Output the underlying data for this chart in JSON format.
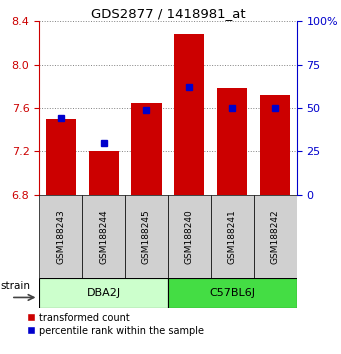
{
  "title": "GDS2877 / 1418981_at",
  "samples": [
    "GSM188243",
    "GSM188244",
    "GSM188245",
    "GSM188240",
    "GSM188241",
    "GSM188242"
  ],
  "bar_values": [
    7.5,
    7.2,
    7.65,
    8.28,
    7.78,
    7.72
  ],
  "bar_bottom": 6.8,
  "percentile_values": [
    44,
    30,
    49,
    62,
    50,
    50
  ],
  "ylim_left": [
    6.8,
    8.4
  ],
  "ylim_right": [
    0,
    100
  ],
  "yticks_left": [
    6.8,
    7.2,
    7.6,
    8.0,
    8.4
  ],
  "yticks_right": [
    0,
    25,
    50,
    75,
    100
  ],
  "bar_color": "#cc0000",
  "dot_color": "#0000cc",
  "groups": [
    {
      "label": "DBA2J",
      "indices": [
        0,
        1,
        2
      ],
      "color": "#ccffcc"
    },
    {
      "label": "C57BL6J",
      "indices": [
        3,
        4,
        5
      ],
      "color": "#44dd44"
    }
  ],
  "group_row_color": "#d0d0d0",
  "strain_label": "strain",
  "left_axis_color": "#cc0000",
  "right_axis_color": "#0000cc",
  "legend_red_label": "transformed count",
  "legend_blue_label": "percentile rank within the sample",
  "bar_width": 0.7
}
